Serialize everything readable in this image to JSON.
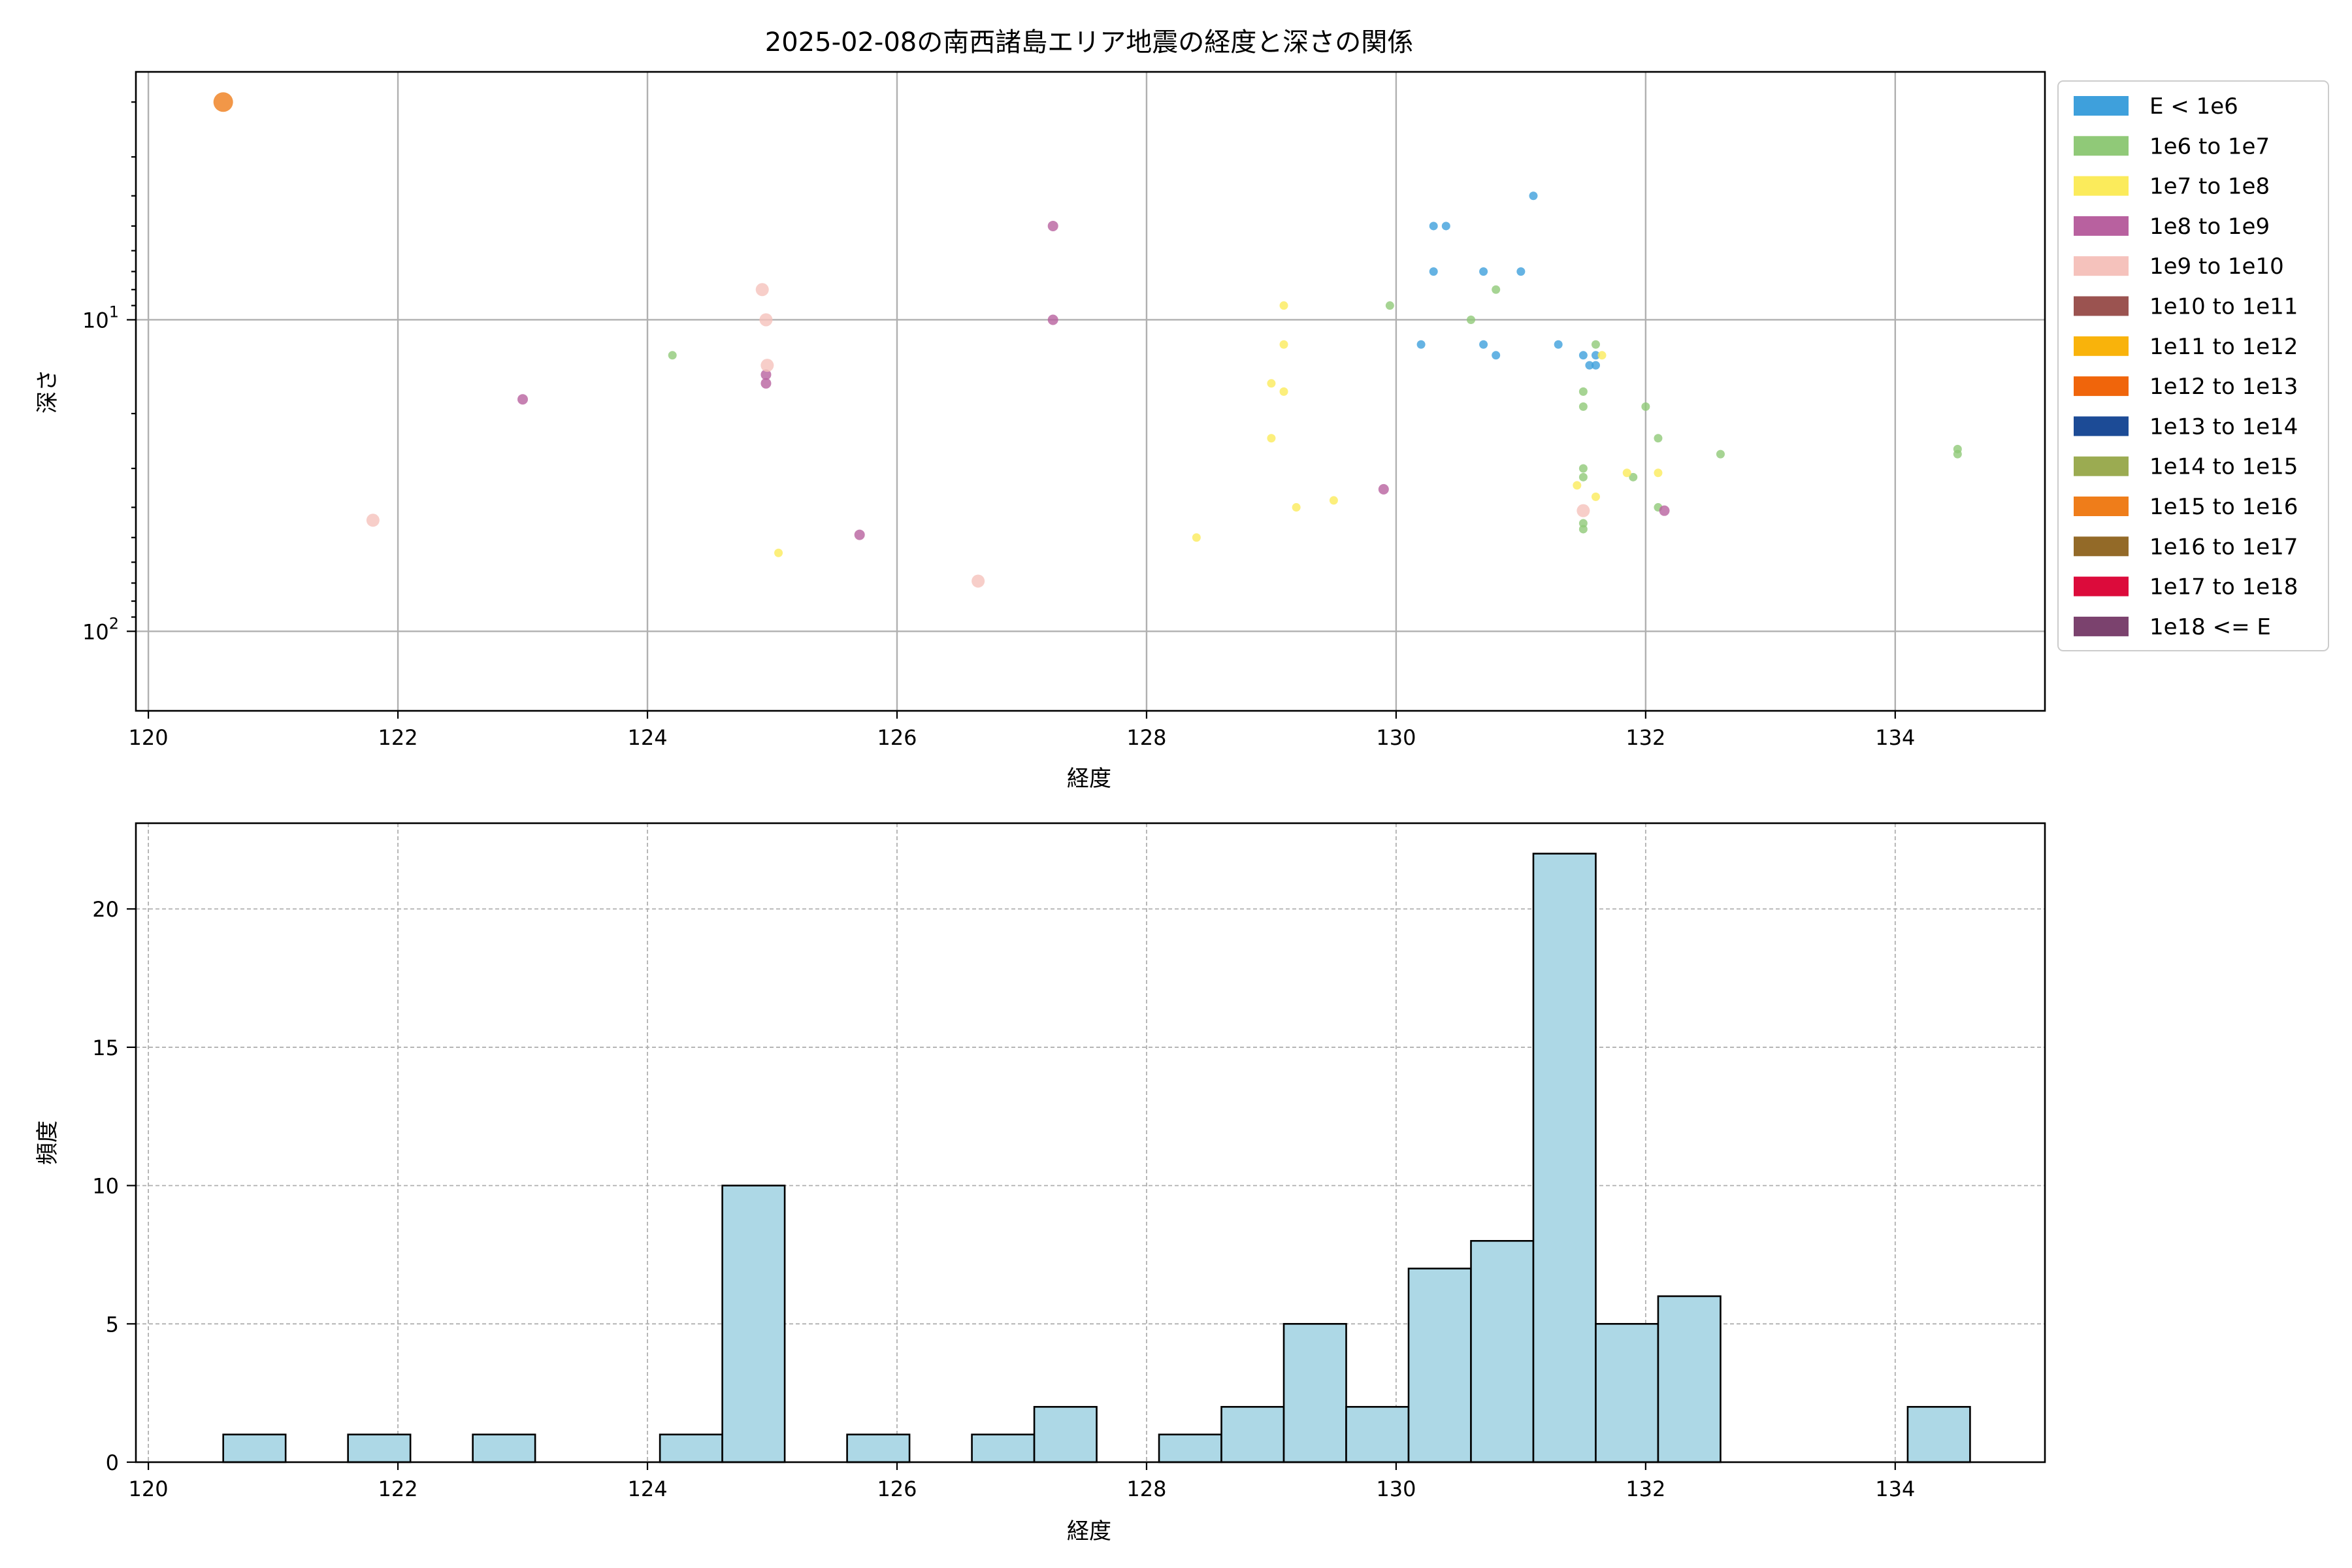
{
  "chart_data": [
    {
      "type": "scatter",
      "title": "2025-02-08の南西諸島エリア地震の経度と深さの関係",
      "xlabel": "経度",
      "ylabel": "深さ",
      "xlim": [
        119.9,
        135.2
      ],
      "ylim": [
        180,
        1.6
      ],
      "y_scale": "log",
      "y_inverted": true,
      "grid": true,
      "legend_position": "outside-right",
      "x_ticks": [
        120,
        122,
        124,
        126,
        128,
        130,
        132,
        134
      ],
      "x_tick_labels": [
        "120",
        "122",
        "124",
        "126",
        "128",
        "130",
        "132",
        "134"
      ],
      "y_ticks": [
        10,
        100
      ],
      "y_tick_labels": [
        {
          "base": "10",
          "exp": "1"
        },
        {
          "base": "10",
          "exp": "2"
        }
      ],
      "legend": [
        {
          "label": "E < 1e6",
          "color": "#3ea0dc"
        },
        {
          "label": "1e6 to 1e7",
          "color": "#90c978"
        },
        {
          "label": "1e7 to 1e8",
          "color": "#fbeb5b"
        },
        {
          "label": "1e8 to 1e9",
          "color": "#b8619f"
        },
        {
          "label": "1e9 to 1e10",
          "color": "#f5c2bc"
        },
        {
          "label": "1e10 to 1e11",
          "color": "#9b5350"
        },
        {
          "label": "1e11 to 1e12",
          "color": "#f9b30b"
        },
        {
          "label": "1e12 to 1e13",
          "color": "#f0650b"
        },
        {
          "label": "1e13 to 1e14",
          "color": "#1c4b96"
        },
        {
          "label": "1e14 to 1e15",
          "color": "#9bab51"
        },
        {
          "label": "1e15 to 1e16",
          "color": "#ef7d1a"
        },
        {
          "label": "1e16 to 1e17",
          "color": "#936a28"
        },
        {
          "label": "1e17 to 1e18",
          "color": "#dc0b3b"
        },
        {
          "label": "1e18 <= E",
          "color": "#7b426e"
        }
      ],
      "series": [
        {
          "name": "E < 1e6",
          "color": "#3ea0dc",
          "points": [
            [
              131.1,
              4
            ],
            [
              130.3,
              5
            ],
            [
              130.4,
              5
            ],
            [
              130.3,
              7
            ],
            [
              130.7,
              7
            ],
            [
              131.0,
              7
            ],
            [
              130.2,
              12
            ],
            [
              130.7,
              12
            ],
            [
              131.3,
              12
            ],
            [
              130.8,
              13
            ],
            [
              131.5,
              13
            ],
            [
              131.6,
              13
            ],
            [
              131.55,
              14
            ],
            [
              131.6,
              14
            ]
          ]
        },
        {
          "name": "1e6 to 1e7",
          "color": "#90c978",
          "points": [
            [
              130.8,
              8
            ],
            [
              129.95,
              9
            ],
            [
              130.6,
              10
            ],
            [
              124.2,
              13
            ],
            [
              131.6,
              12
            ],
            [
              131.5,
              17
            ],
            [
              131.5,
              19
            ],
            [
              132.0,
              19
            ],
            [
              132.1,
              24
            ],
            [
              132.6,
              27
            ],
            [
              134.5,
              26
            ],
            [
              134.5,
              27
            ],
            [
              131.5,
              30
            ],
            [
              131.5,
              32
            ],
            [
              131.9,
              32
            ],
            [
              132.1,
              40
            ],
            [
              131.5,
              45
            ],
            [
              131.5,
              47
            ]
          ]
        },
        {
          "name": "1e7 to 1e8",
          "color": "#fbeb5b",
          "points": [
            [
              129.1,
              9
            ],
            [
              129.1,
              12
            ],
            [
              129.0,
              16
            ],
            [
              129.1,
              17
            ],
            [
              129.0,
              24
            ],
            [
              131.85,
              31
            ],
            [
              132.1,
              31
            ],
            [
              131.45,
              34
            ],
            [
              131.6,
              37
            ],
            [
              129.5,
              38
            ],
            [
              129.2,
              40
            ],
            [
              128.4,
              50
            ],
            [
              125.05,
              56
            ],
            [
              131.65,
              13
            ]
          ]
        },
        {
          "name": "1e8 to 1e9",
          "color": "#b8619f",
          "points": [
            [
              127.25,
              5
            ],
            [
              127.25,
              10
            ],
            [
              124.95,
              15
            ],
            [
              124.95,
              16
            ],
            [
              123.0,
              18
            ],
            [
              129.9,
              35
            ],
            [
              132.15,
              41
            ],
            [
              125.7,
              49
            ]
          ]
        },
        {
          "name": "1e9 to 1e10",
          "color": "#f5c2bc",
          "points": [
            [
              124.92,
              8
            ],
            [
              124.95,
              10
            ],
            [
              124.96,
              14
            ],
            [
              121.8,
              44
            ],
            [
              131.5,
              41
            ],
            [
              126.65,
              69
            ]
          ]
        },
        {
          "name": "1e15 to 1e16",
          "color": "#ef7d1a",
          "points": [
            [
              120.6,
              2
            ]
          ]
        }
      ]
    },
    {
      "type": "bar",
      "subtype": "histogram",
      "title": "",
      "xlabel": "経度",
      "ylabel": "頻度",
      "xlim": [
        119.9,
        135.2
      ],
      "ylim": [
        0,
        23.1
      ],
      "grid": true,
      "bar_color": "#add8e6",
      "x_ticks": [
        120,
        122,
        124,
        126,
        128,
        130,
        132,
        134
      ],
      "x_tick_labels": [
        "120",
        "122",
        "124",
        "126",
        "128",
        "130",
        "132",
        "134"
      ],
      "y_ticks": [
        0,
        5,
        10,
        15,
        20
      ],
      "y_tick_labels": [
        "0",
        "5",
        "10",
        "15",
        "20"
      ],
      "bin_edges": [
        120.6,
        121.1,
        121.6,
        122.1,
        122.6,
        123.1,
        123.6,
        124.1,
        124.6,
        125.1,
        125.6,
        126.1,
        126.6,
        127.1,
        127.6,
        128.1,
        128.6,
        129.1,
        129.6,
        130.1,
        130.6,
        131.1,
        131.6,
        132.1,
        132.6,
        133.1,
        133.6,
        134.1,
        134.6
      ],
      "counts": [
        1,
        0,
        1,
        0,
        1,
        0,
        0,
        1,
        10,
        0,
        1,
        0,
        1,
        2,
        0,
        1,
        2,
        5,
        2,
        7,
        8,
        22,
        5,
        6,
        0,
        0,
        0,
        2
      ]
    }
  ]
}
